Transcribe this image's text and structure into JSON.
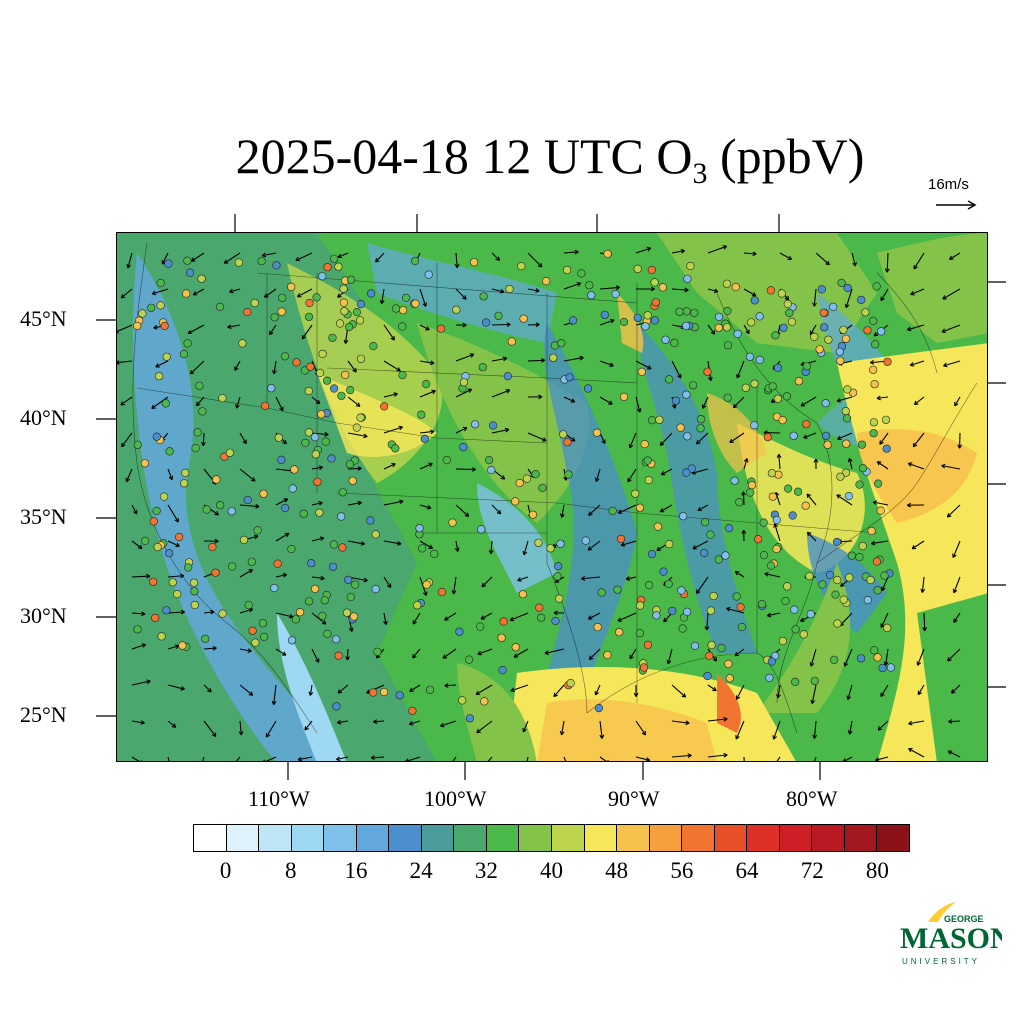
{
  "title": {
    "date": "2025-04-18",
    "hour": "12 UTC",
    "species": "O",
    "subscript": "3",
    "unit": "(ppbV)"
  },
  "reference_vector": {
    "label": "16m/s",
    "speed": 16
  },
  "latitude_labels": [
    "45°N",
    "40°N",
    "35°N",
    "30°N",
    "25°N"
  ],
  "longitude_labels": [
    "110°W",
    "100°W",
    "90°W",
    "80°W"
  ],
  "colorbar": {
    "colors": [
      "#ffffff",
      "#dff2fb",
      "#bfe6f7",
      "#9fd8f3",
      "#7fc0ea",
      "#63a8dc",
      "#4a8ecb",
      "#4a9c9a",
      "#4aa86f",
      "#4bb84a",
      "#83c34a",
      "#bcd44c",
      "#f6e75a",
      "#f7c24c",
      "#f59f3e",
      "#f17530",
      "#e85029",
      "#de3026",
      "#cf1f26",
      "#b81a24",
      "#a3171e",
      "#8b1217"
    ],
    "tick_labels": [
      "0",
      "8",
      "16",
      "24",
      "32",
      "40",
      "48",
      "56",
      "64",
      "72",
      "80"
    ]
  },
  "logo": {
    "line1": "GEORGE",
    "line2": "MASON",
    "line3": "UNIVERSITY",
    "color": "#006633",
    "accent": "#ffcc33"
  },
  "map_palette": {
    "low": "#5aa0d8",
    "mid": "#4bb84a",
    "high": "#f6e75a",
    "peak": "#f7b24c"
  }
}
